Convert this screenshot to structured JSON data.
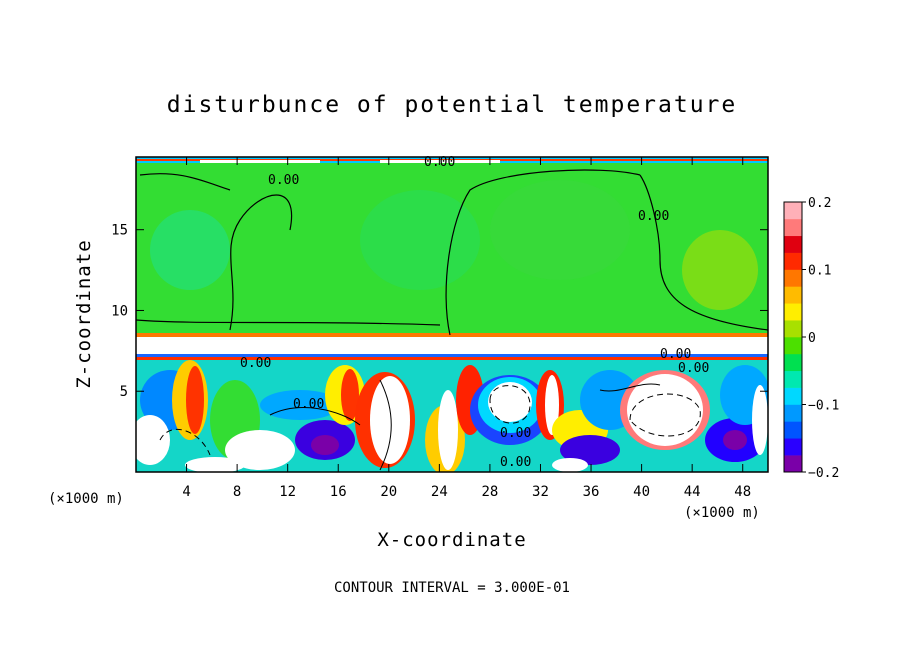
{
  "chart_data": {
    "type": "heatmap",
    "title": "disturbunce of potential temperature",
    "xlabel": "X-coordinate",
    "ylabel": "Z-coordinate",
    "x_unit": "(×1000 m)",
    "x_ticks": [
      4,
      8,
      12,
      16,
      20,
      24,
      28,
      32,
      36,
      40,
      44,
      48
    ],
    "y_ticks": [
      5,
      10,
      15
    ],
    "xlim": [
      0,
      50
    ],
    "ylim": [
      0,
      19.5
    ],
    "colorbar": {
      "ticks": [
        "0.2",
        "0.1",
        "0",
        "−0.1",
        "−0.2"
      ],
      "range": [
        -0.2,
        0.2
      ],
      "colors": [
        "#7a00a8",
        "#2a00ff",
        "#0055ff",
        "#0099ff",
        "#00d8ff",
        "#00e8b0",
        "#00e050",
        "#4ce000",
        "#a8e000",
        "#ffee00",
        "#ffbb00",
        "#ff7700",
        "#ff2a00",
        "#e00010",
        "#ff7a7a",
        "#ffb0b8"
      ]
    },
    "contour_labels": [
      "0.00",
      "0.00",
      "0.00",
      "0.00",
      "0.00",
      "0.00",
      "0.00",
      "0.00",
      "0.00"
    ],
    "footer": "CONTOUR INTERVAL = 3.000E-01"
  }
}
